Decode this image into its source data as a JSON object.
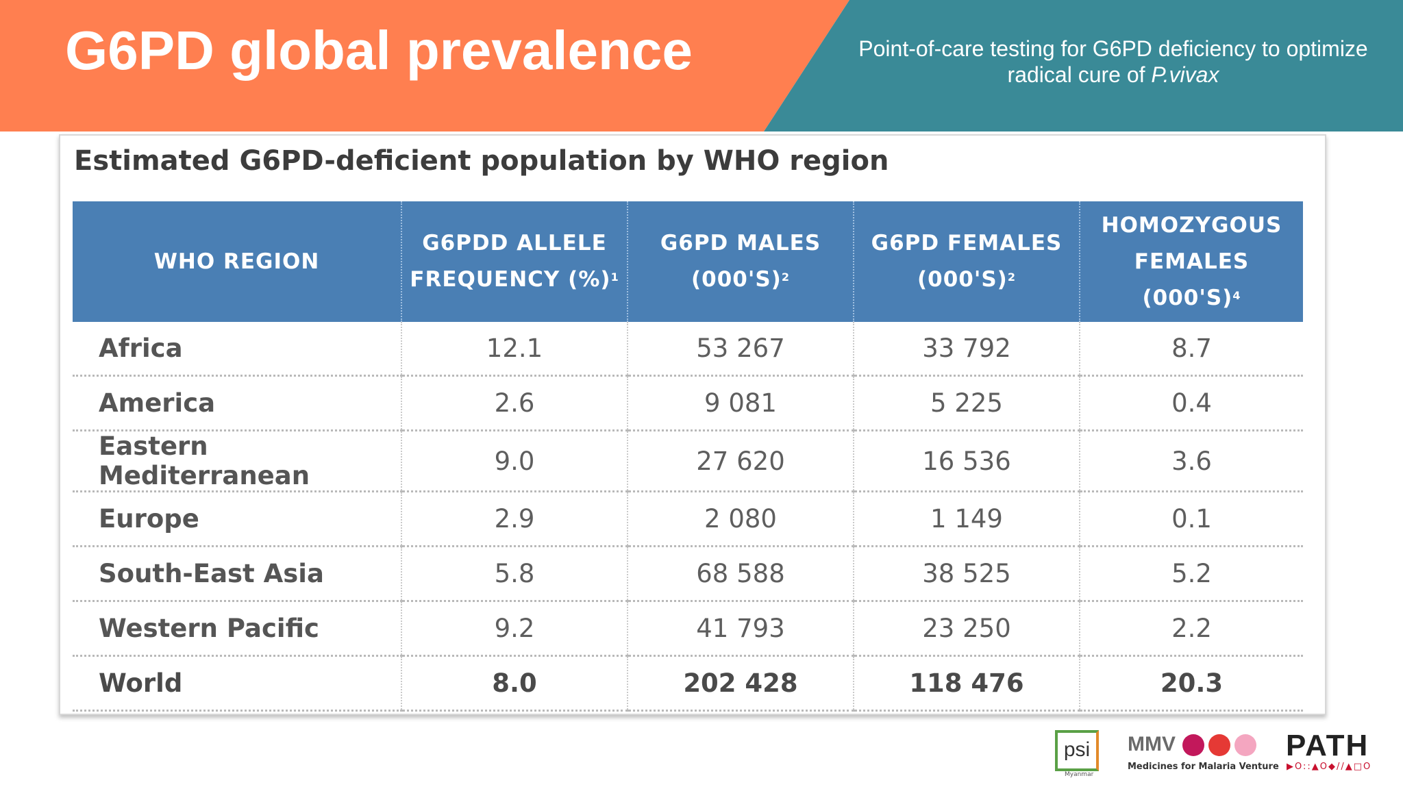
{
  "header": {
    "title": "G6PD global prevalence",
    "subtitle_line1": "Point-of-care testing for G6PD deficiency to optimize",
    "subtitle_line2_prefix": "radical cure of ",
    "subtitle_line2_italic": "P.vivax",
    "colors": {
      "orange": "#ff7f50",
      "teal": "#3a8a97"
    }
  },
  "table": {
    "title": "Estimated G6PD-deficient population by WHO region",
    "columns": [
      {
        "line1": "WHO REGION",
        "line2": "",
        "sup": ""
      },
      {
        "line1": "G6PDD ALLELE",
        "line2": "FREQUENCY (%)",
        "sup": "1"
      },
      {
        "line1": "G6PD MALES",
        "line2": "(000'S)",
        "sup": "2"
      },
      {
        "line1": "G6PD FEMALES",
        "line2": "(000'S)",
        "sup": "2"
      },
      {
        "line1": "HOMOZYGOUS",
        "line2": "FEMALES (000'S)",
        "sup": "4"
      }
    ],
    "rows": [
      [
        "Africa",
        "12.1",
        "53 267",
        "33 792",
        "8.7"
      ],
      [
        "America",
        "2.6",
        "9 081",
        "5 225",
        "0.4"
      ],
      [
        "Eastern Mediterranean",
        "9.0",
        "27 620",
        "16 536",
        "3.6"
      ],
      [
        "Europe",
        "2.9",
        "2 080",
        "1 149",
        "0.1"
      ],
      [
        "South-East Asia",
        "5.8",
        "68 588",
        "38 525",
        "5.2"
      ],
      [
        "Western Pacific",
        "9.2",
        "41 793",
        "23 250",
        "2.2"
      ],
      [
        "World",
        "8.0",
        "202 428",
        "118 476",
        "20.3"
      ]
    ],
    "header_color": "#4a7fb4"
  },
  "logos": {
    "psi": "psi",
    "psi_sub": "Myanmar",
    "mmv": "MMV",
    "mmv_sub": "Medicines for Malaria Venture",
    "path": "PATH",
    "path_sub": "▶O::▲O◆//▲□O"
  }
}
